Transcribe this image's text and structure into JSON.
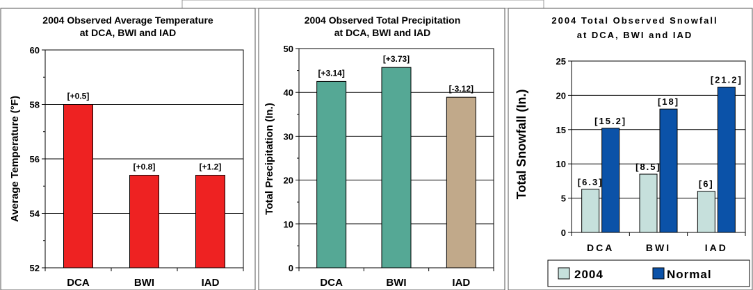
{
  "chart_data": [
    {
      "type": "bar",
      "title": [
        "2004 Observed Average Temperature",
        "at DCA, BWI and IAD"
      ],
      "ylabel": "Average Temperature (°F)",
      "xlabel": "",
      "categories": [
        "DCA",
        "BWI",
        "IAD"
      ],
      "values": [
        58.0,
        55.4,
        55.4
      ],
      "labels": [
        "[+0.5]",
        "[+0.8]",
        "[+1.2]"
      ],
      "yticks": [
        "52",
        "54",
        "56",
        "58",
        "60"
      ],
      "ylim": [
        52,
        60
      ],
      "grid": true,
      "colors": [
        "#ee2222",
        "#ee2222",
        "#ee2222"
      ]
    },
    {
      "type": "bar",
      "title": [
        "2004 Observed Total Precipitation",
        "at DCA, BWI and IAD"
      ],
      "ylabel": "Total Precipitation (In.)",
      "xlabel": "",
      "categories": [
        "DCA",
        "BWI",
        "IAD"
      ],
      "values": [
        42.5,
        45.7,
        38.9
      ],
      "labels": [
        "[+3.14]",
        "[+3.73]",
        "[-3.12]"
      ],
      "yticks": [
        "0",
        "10",
        "20",
        "30",
        "40",
        "50"
      ],
      "ylim": [
        0,
        50
      ],
      "grid": true,
      "colors": [
        "#55a895",
        "#55a895",
        "#c1a98a"
      ]
    },
    {
      "type": "bar",
      "title": [
        "2004 Total Observed Snowfall",
        "at DCA, BWI and IAD"
      ],
      "ylabel": "Total Snowfall (In.)",
      "xlabel": "",
      "categories": [
        "DCA",
        "BWI",
        "IAD"
      ],
      "yticks": [
        "0",
        "5",
        "10",
        "15",
        "20",
        "25"
      ],
      "ylim": [
        0,
        25
      ],
      "grid": true,
      "legend": "bottom",
      "series": [
        {
          "name": "2004",
          "values": [
            6.3,
            8.5,
            6.0
          ],
          "labels": [
            "[6.3]",
            "[8.5]",
            "[6]"
          ],
          "color": "#c6e0dc"
        },
        {
          "name": "Normal",
          "values": [
            15.2,
            18.0,
            21.2
          ],
          "labels": [
            "[15.2]",
            "[18]",
            "[21.2]"
          ],
          "color": "#0b52a8"
        }
      ]
    }
  ]
}
